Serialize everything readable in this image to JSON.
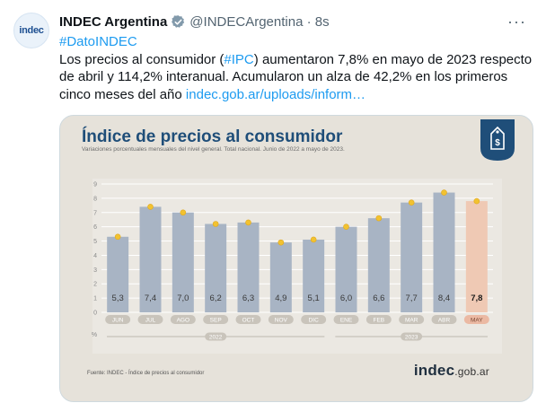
{
  "tweet": {
    "avatar_text": "indec",
    "author_name": "INDEC Argentina",
    "handle": "@INDECArgentina · 8s",
    "more_label": "···",
    "hashtag": "#DatoINDEC",
    "text_1": "Los precios al consumidor (",
    "text_hashtag": "#IPC",
    "text_2": ") aumentaron 7,8% en mayo de 2023 respecto de abril y 114,2% interanual. Acumularon un alza de 42,2% en los primeros cinco meses del año ",
    "link": "indec.gob.ar/uploads/inform…"
  },
  "card": {
    "title": "Índice de precios al consumidor",
    "subtitle": "Variaciones porcentuales mensuales del nivel general. Total nacional. Junio de 2022 a mayo de 2023.",
    "source": "Fuente: INDEC - Índice de precios al consumidor",
    "logo_main": "indec",
    "logo_suffix": ".gob.ar"
  },
  "chart_data": {
    "type": "bar",
    "title": "Índice de precios al consumidor",
    "subtitle": "Variaciones porcentuales mensuales del nivel general. Total nacional. Junio de 2022 a mayo de 2023.",
    "ylabel": "%",
    "ylim": [
      0,
      9
    ],
    "yticks": [
      "0",
      "1",
      "2",
      "3",
      "4",
      "5",
      "6",
      "7",
      "8",
      "9"
    ],
    "categories": [
      "JUN",
      "JUL",
      "AGO",
      "SEP",
      "OCT",
      "NOV",
      "DIC",
      "ENE",
      "FEB",
      "MAR",
      "ABR",
      "MAY"
    ],
    "values": [
      5.3,
      7.4,
      7.0,
      6.2,
      6.3,
      4.9,
      5.1,
      6.0,
      6.6,
      7.7,
      8.4,
      7.8
    ],
    "value_labels": [
      "5,3",
      "7,4",
      "7,0",
      "6,2",
      "6,3",
      "4,9",
      "5,1",
      "6,0",
      "6,6",
      "7,7",
      "8,4",
      "7,8"
    ],
    "year_groups": [
      {
        "label": "2022",
        "from": 0,
        "to": 6
      },
      {
        "label": "2023",
        "from": 7,
        "to": 11
      }
    ],
    "highlighted_index": 11,
    "colors": {
      "bar": "#a8b4c4",
      "bar_highlight": "#efc9b4",
      "dot": "#f2c230",
      "value_text": "#3a3a3a",
      "value_text_highlight": "#1a1a1a",
      "pill": "#c9c4bb",
      "pill_highlight": "#ebb9a3"
    },
    "grid": true
  }
}
